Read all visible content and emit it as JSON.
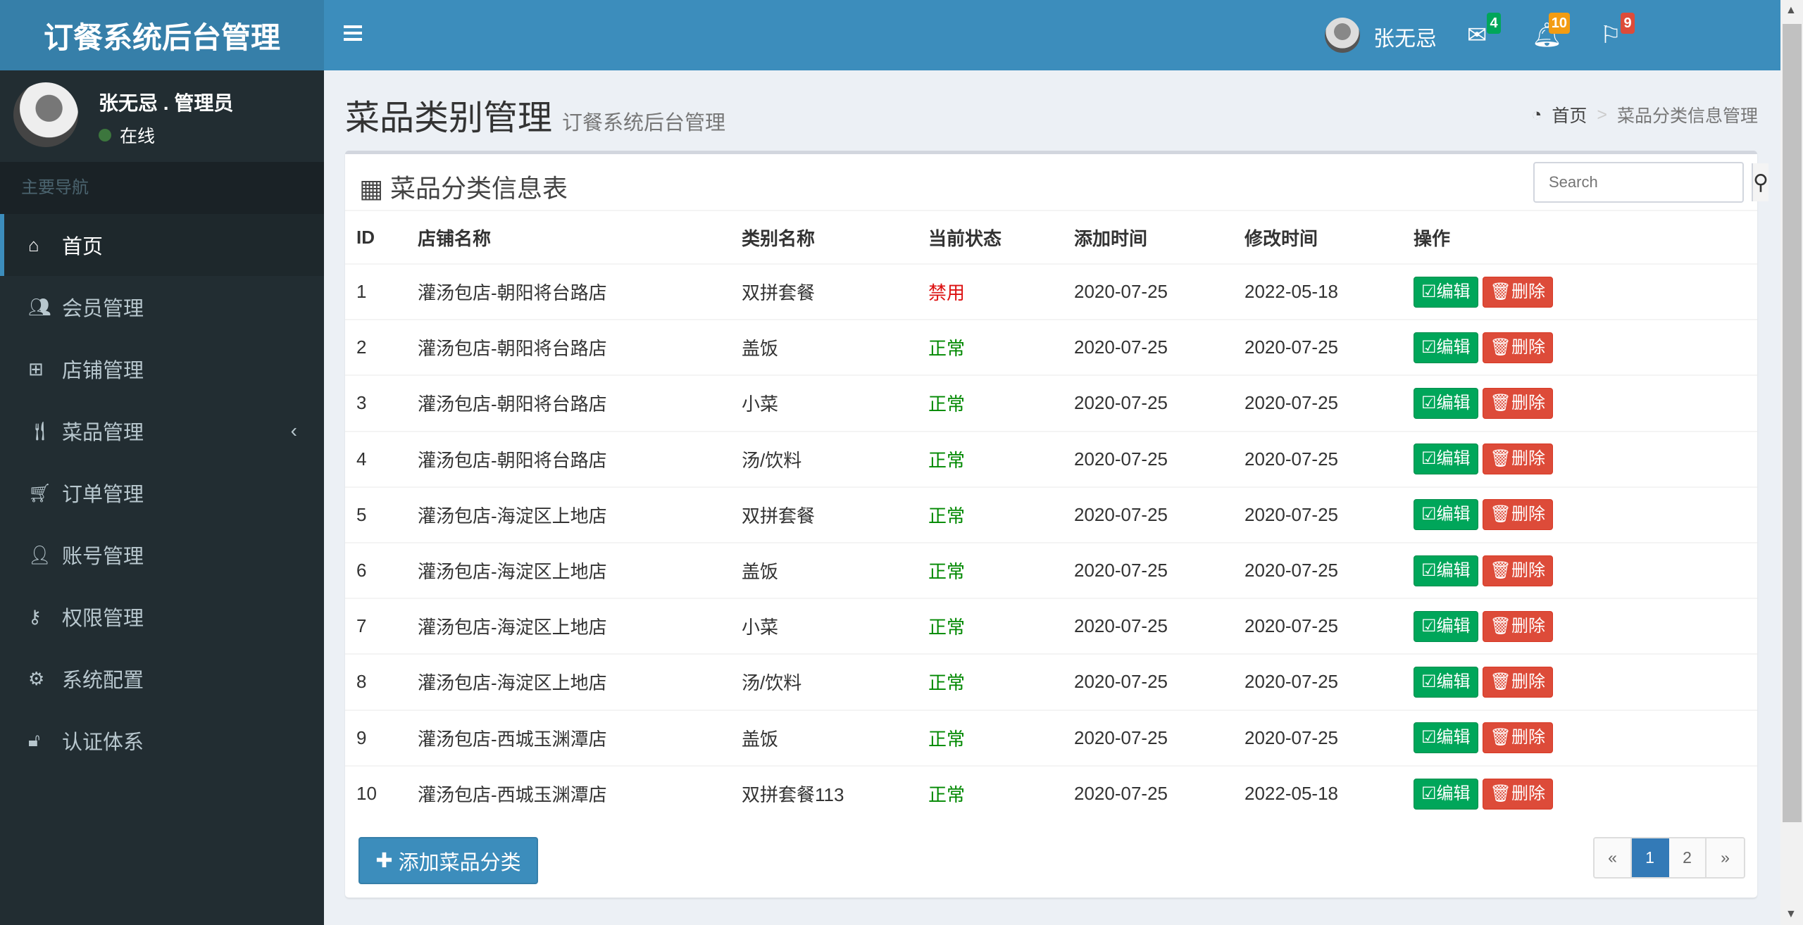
{
  "app": {
    "logo": "订餐系统后台管理"
  },
  "topbar": {
    "mail_badge": "4",
    "bell_badge": "10",
    "flag_badge": "9",
    "user": "张无忌",
    "colors": {
      "mail": "#00a65a",
      "bell": "#f39c12",
      "flag": "#dd4b39"
    }
  },
  "sidebar": {
    "user_name": "张无忌 . 管理员",
    "status": "在线",
    "nav_header": "主要导航",
    "items": [
      {
        "label": "首页",
        "icon": "home-icon"
      },
      {
        "label": "会员管理",
        "icon": "users-icon"
      },
      {
        "label": "店铺管理",
        "icon": "sitemap-icon"
      },
      {
        "label": "菜品管理",
        "icon": "cutlery-icon"
      },
      {
        "label": "订单管理",
        "icon": "cart-icon"
      },
      {
        "label": "账号管理",
        "icon": "user-icon"
      },
      {
        "label": "权限管理",
        "icon": "key-icon"
      },
      {
        "label": "系统配置",
        "icon": "gear-icon"
      },
      {
        "label": "认证体系",
        "icon": "unlock-icon"
      }
    ]
  },
  "page": {
    "title": "菜品类别管理",
    "subtitle": "订餐系统后台管理",
    "breadcrumb": {
      "home": "首页",
      "sep": ">",
      "current": "菜品分类信息管理"
    }
  },
  "box": {
    "title": "菜品分类信息表",
    "search_placeholder": "Search",
    "columns": [
      "ID",
      "店铺名称",
      "类别名称",
      "当前状态",
      "添加时间",
      "修改时间",
      "操作"
    ],
    "rows": [
      {
        "id": "1",
        "shop": "灌汤包店-朝阳将台路店",
        "category": "双拼套餐",
        "status": "禁用",
        "added": "2020-07-25",
        "modified": "2022-05-18"
      },
      {
        "id": "2",
        "shop": "灌汤包店-朝阳将台路店",
        "category": "盖饭",
        "status": "正常",
        "added": "2020-07-25",
        "modified": "2020-07-25"
      },
      {
        "id": "3",
        "shop": "灌汤包店-朝阳将台路店",
        "category": "小菜",
        "status": "正常",
        "added": "2020-07-25",
        "modified": "2020-07-25"
      },
      {
        "id": "4",
        "shop": "灌汤包店-朝阳将台路店",
        "category": "汤/饮料",
        "status": "正常",
        "added": "2020-07-25",
        "modified": "2020-07-25"
      },
      {
        "id": "5",
        "shop": "灌汤包店-海淀区上地店",
        "category": "双拼套餐",
        "status": "正常",
        "added": "2020-07-25",
        "modified": "2020-07-25"
      },
      {
        "id": "6",
        "shop": "灌汤包店-海淀区上地店",
        "category": "盖饭",
        "status": "正常",
        "added": "2020-07-25",
        "modified": "2020-07-25"
      },
      {
        "id": "7",
        "shop": "灌汤包店-海淀区上地店",
        "category": "小菜",
        "status": "正常",
        "added": "2020-07-25",
        "modified": "2020-07-25"
      },
      {
        "id": "8",
        "shop": "灌汤包店-海淀区上地店",
        "category": "汤/饮料",
        "status": "正常",
        "added": "2020-07-25",
        "modified": "2020-07-25"
      },
      {
        "id": "9",
        "shop": "灌汤包店-西城玉渊潭店",
        "category": "盖饭",
        "status": "正常",
        "added": "2020-07-25",
        "modified": "2020-07-25"
      },
      {
        "id": "10",
        "shop": "灌汤包店-西城玉渊潭店",
        "category": "双拼套餐113",
        "status": "正常",
        "added": "2020-07-25",
        "modified": "2022-05-18"
      }
    ],
    "edit_label": "编辑",
    "delete_label": "删除",
    "add_label": "添加菜品分类",
    "pagination": [
      "«",
      "1",
      "2",
      "»"
    ],
    "current_page": "1"
  }
}
